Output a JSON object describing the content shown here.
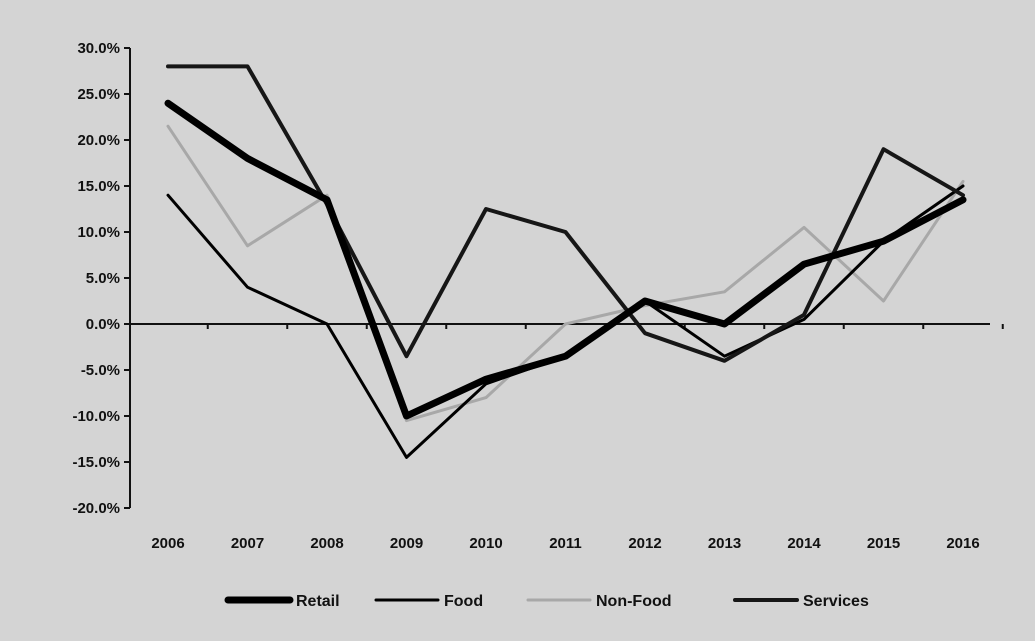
{
  "chart_data": {
    "type": "line",
    "title": "",
    "xlabel": "",
    "ylabel": "",
    "categories": [
      "2006",
      "2007",
      "2008",
      "2009",
      "2010",
      "2011",
      "2012",
      "2013",
      "2014",
      "2015",
      "2016"
    ],
    "ylim": [
      -20,
      30
    ],
    "yticks": [
      30,
      25,
      20,
      15,
      10,
      5,
      0,
      -5,
      -10,
      -15,
      -20
    ],
    "ytick_labels": [
      "30.0%",
      "25.0%",
      "20.0%",
      "15.0%",
      "10.0%",
      "5.0%",
      "0.0%",
      "-5.0%",
      "-10.0%",
      "-15.0%",
      "-20.0%"
    ],
    "grid": false,
    "legend_position": "bottom",
    "series": [
      {
        "name": "Retail",
        "color": "#000000",
        "style": "thick",
        "values": [
          24,
          18,
          13.5,
          -10,
          -6,
          -3.5,
          2.5,
          0,
          6.5,
          9,
          13.5
        ]
      },
      {
        "name": "Food",
        "color": "#000000",
        "style": "thin",
        "values": [
          14,
          4,
          0,
          -14.5,
          -6.5,
          -3.5,
          2.5,
          -3.5,
          0.5,
          9,
          15
        ]
      },
      {
        "name": "Non-Food",
        "color": "#a8a8a8",
        "style": "light",
        "values": [
          21.5,
          8.5,
          14,
          -10.5,
          -8,
          0,
          2,
          3.5,
          10.5,
          2.5,
          15.5
        ]
      },
      {
        "name": "Services",
        "color": "#161616",
        "style": "medium",
        "values": [
          28,
          28,
          13,
          -3.5,
          12.5,
          10,
          -1,
          -4,
          1,
          19,
          14
        ]
      }
    ]
  }
}
